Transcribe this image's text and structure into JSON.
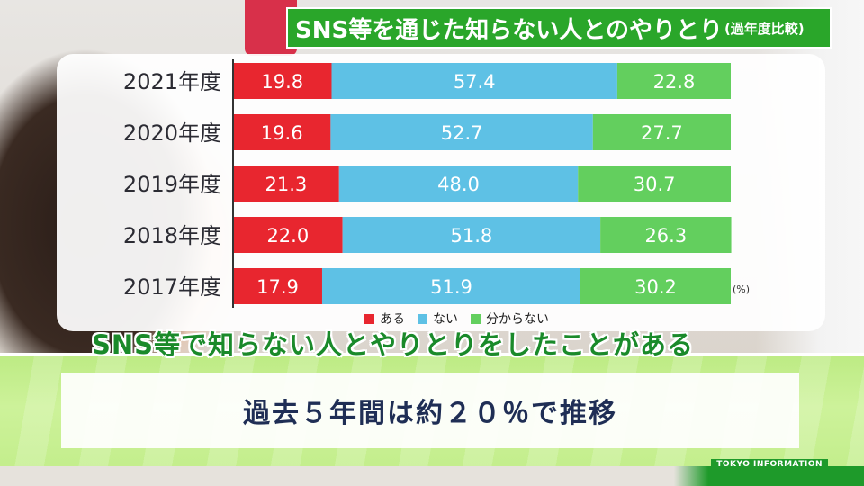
{
  "title": {
    "main": "SNS等を通じた知らない人とのやりとり",
    "sub": "(過年度比較)"
  },
  "sub_headline": "SNS等で知らない人とやりとりをしたことがある",
  "caption": "過去５年間は約２０％で推移",
  "brand": "TOKYO  INFORMATION",
  "colors": {
    "aru": "#e8262f",
    "nai": "#5ec1e5",
    "wakaranai": "#63cf5e",
    "title_bg": "#2aa62a"
  },
  "chart_data": {
    "type": "bar",
    "orientation": "horizontal",
    "stacked": true,
    "unit_label": "(%)",
    "categories": [
      "2021年度",
      "2020年度",
      "2019年度",
      "2018年度",
      "2017年度"
    ],
    "series": [
      {
        "name": "ある",
        "values": [
          19.8,
          19.6,
          21.3,
          22.0,
          17.9
        ],
        "labels": [
          "19.8",
          "19.6",
          "21.3",
          "22.0",
          "17.9"
        ]
      },
      {
        "name": "ない",
        "values": [
          57.4,
          52.7,
          48.0,
          51.8,
          51.9
        ],
        "labels": [
          "57.4",
          "52.7",
          "48.0",
          "51.8",
          "51.9"
        ]
      },
      {
        "name": "分からない",
        "values": [
          22.8,
          27.7,
          30.7,
          26.3,
          30.2
        ],
        "labels": [
          "22.8",
          "27.7",
          "30.7",
          "26.3",
          "30.2"
        ]
      }
    ],
    "xlim": [
      0,
      100
    ],
    "legend_position": "bottom"
  }
}
